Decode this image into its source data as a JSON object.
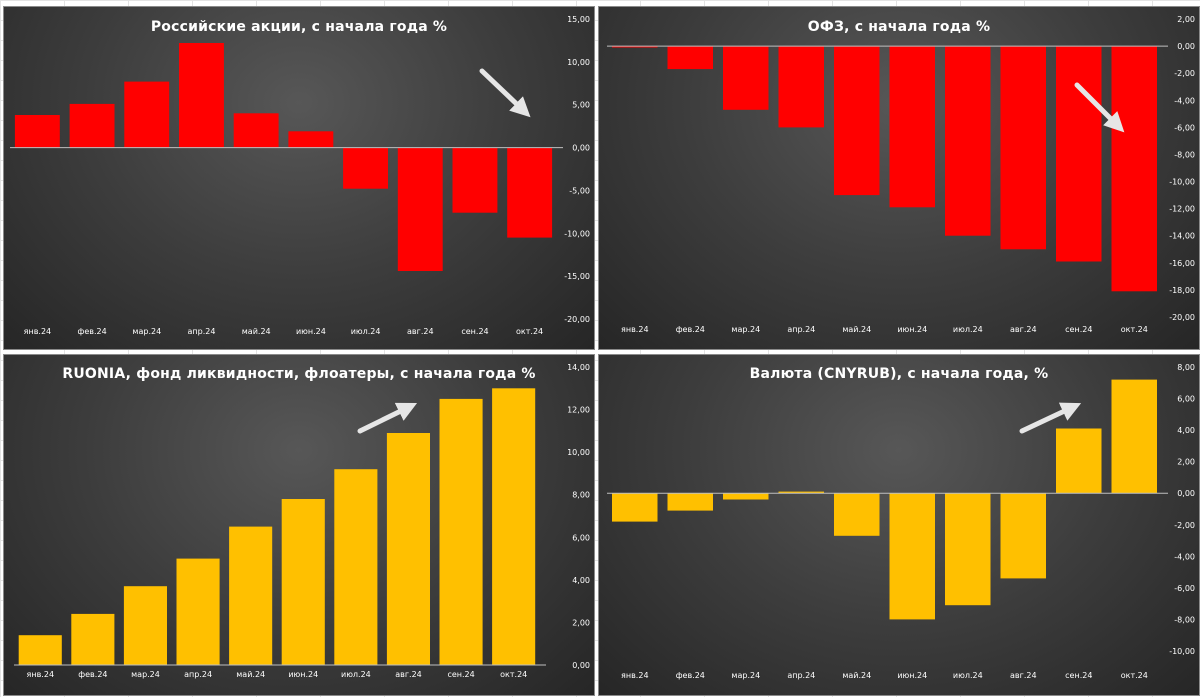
{
  "colors": {
    "red_bar": "#ff0000",
    "gold_bar": "#ffc000",
    "arrow": "#e6e6e6",
    "text": "#ffffff",
    "zero_line": "#bfbfbf"
  },
  "chart_data": [
    {
      "id": "p1",
      "type": "bar",
      "title": "Российские акции, с начала года %",
      "color": "#ff0000",
      "categories": [
        "янв.24",
        "фев.24",
        "мар.24",
        "апр.24",
        "май.24",
        "июн.24",
        "июл.24",
        "авг.24",
        "сен.24",
        "окт.24"
      ],
      "values": [
        3.8,
        5.1,
        7.7,
        12.2,
        4.0,
        1.9,
        -4.8,
        -14.4,
        -7.6,
        -10.5
      ],
      "ylim": [
        -20,
        15
      ],
      "yticks": [
        "15,00",
        "10,00",
        "5,00",
        "0,00",
        "-5,00",
        "-10,00",
        "-15,00",
        "-20,00"
      ],
      "xlabel": "",
      "ylabel": "",
      "grid": false,
      "arrow": "down"
    },
    {
      "id": "p2",
      "type": "bar",
      "title": "ОФЗ, с начала года %",
      "color": "#ff0000",
      "categories": [
        "янв.24",
        "фев.24",
        "мар.24",
        "апр.24",
        "май.24",
        "июн.24",
        "июл.24",
        "авг.24",
        "сен.24",
        "окт.24"
      ],
      "values": [
        -0.1,
        -1.7,
        -4.7,
        -6.0,
        -11.0,
        -11.9,
        -14.0,
        -15.0,
        -15.9,
        -18.1
      ],
      "ylim": [
        -20,
        2
      ],
      "yticks": [
        "2,00",
        "0,00",
        "-2,00",
        "-4,00",
        "-6,00",
        "-8,00",
        "-10,00",
        "-12,00",
        "-14,00",
        "-16,00",
        "-18,00",
        "-20,00"
      ],
      "xlabel": "",
      "ylabel": "",
      "grid": false,
      "arrow": "down"
    },
    {
      "id": "p3",
      "type": "bar",
      "title": "RUONIA, фонд ликвидности, флоатеры, с начала года %",
      "color": "#ffc000",
      "categories": [
        "янв.24",
        "фев.24",
        "мар.24",
        "апр.24",
        "май.24",
        "июн.24",
        "июл.24",
        "авг.24",
        "сен.24",
        "окт.24"
      ],
      "values": [
        1.4,
        2.4,
        3.7,
        5.0,
        6.5,
        7.8,
        9.2,
        10.9,
        12.5,
        13.0
      ],
      "ylim": [
        0,
        14
      ],
      "yticks": [
        "14,00",
        "12,00",
        "10,00",
        "8,00",
        "6,00",
        "4,00",
        "2,00",
        "0,00"
      ],
      "xlabel": "",
      "ylabel": "",
      "grid": false,
      "arrow": "up"
    },
    {
      "id": "p4",
      "type": "bar",
      "title": "Валюта (CNYRUB), с начала года, %",
      "color": "#ffc000",
      "categories": [
        "янв.24",
        "фев.24",
        "мар.24",
        "апр.24",
        "май.24",
        "июн.24",
        "июл.24",
        "авг.24",
        "сен.24",
        "окт.24"
      ],
      "values": [
        -1.8,
        -1.1,
        -0.4,
        0.1,
        -2.7,
        -8.0,
        -7.1,
        -5.4,
        4.1,
        7.2
      ],
      "ylim": [
        -10,
        8
      ],
      "yticks": [
        "8,00",
        "6,00",
        "4,00",
        "2,00",
        "0,00",
        "-2,00",
        "-4,00",
        "-6,00",
        "-8,00",
        "-10,00"
      ],
      "xlabel": "",
      "ylabel": "",
      "grid": false,
      "arrow": "up"
    }
  ]
}
